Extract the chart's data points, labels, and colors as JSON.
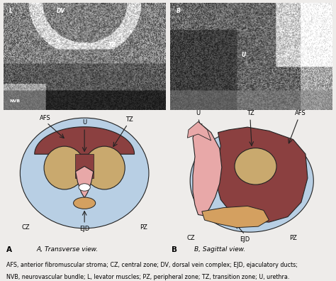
{
  "fig_width": 4.74,
  "fig_height": 3.96,
  "dpi": 100,
  "bg_color": "#eeecea",
  "caption_line1": "AFS, anterior fibromuscular stroma; CZ, central zone; DV, dorsal vein complex; EJD, ejaculatory ducts;",
  "caption_line2": "NVB, neurovascular bundle; L, levator muscles; PZ, peripheral zone; TZ, transition zone; U, urethra.",
  "label_A_cap": "A, Transverse view.",
  "label_B_cap": "B, Sagittal view.",
  "colors": {
    "pz": "#b8cfe4",
    "tz": "#c9a96e",
    "afs": "#8b4040",
    "ejd": "#d4a060",
    "urethra_pink": "#e8a8a8",
    "urethra_lumen": "#e8ddd0",
    "cz_blue": "#9fbbd4",
    "outline": "#222222",
    "us_bg": "#888888"
  }
}
